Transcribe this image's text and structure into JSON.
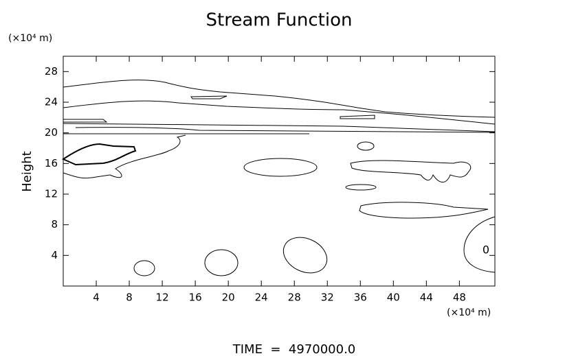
{
  "chart_data": {
    "type": "contour",
    "title": "Stream Function",
    "y_unit": "(×10⁴ m)",
    "x_unit": "(×10⁴ m)",
    "ylabel": "Height",
    "contour_label": "0",
    "footer": "TIME  =  4970000.0",
    "xlim": [
      0,
      52.3
    ],
    "ylim": [
      0,
      30
    ],
    "xticks": [
      4,
      8,
      12,
      16,
      20,
      24,
      28,
      32,
      36,
      40,
      44,
      48
    ],
    "yticks": [
      4,
      8,
      12,
      16,
      20,
      24,
      28
    ]
  }
}
